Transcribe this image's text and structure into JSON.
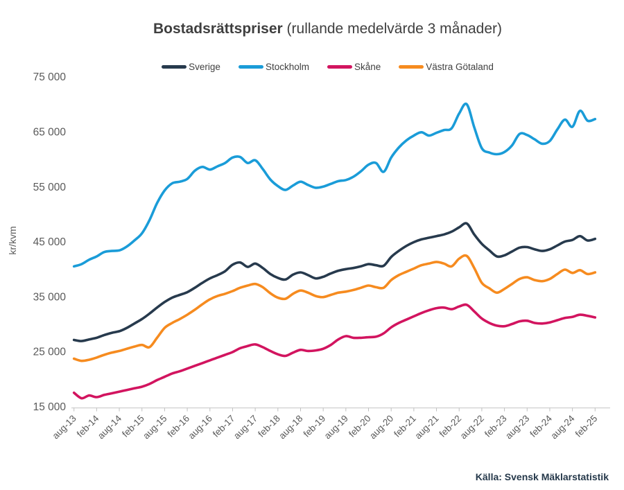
{
  "chart_data": {
    "type": "line",
    "title_bold": "Bostadsrättspriser",
    "title_rest": " (rullande medelvärde 3 månader)",
    "ylabel": "kr/kvm",
    "source": "Källa: Svensk Mäklarstatistik",
    "ylim": [
      15000,
      75000
    ],
    "grid": "none, only x axis line with ticks",
    "legend_position": "top center",
    "y_ticks": [
      "75 000",
      "65 000",
      "55 000",
      "45 000",
      "35 000",
      "25 000",
      "15 000"
    ],
    "y_tick_values": [
      75000,
      65000,
      55000,
      45000,
      35000,
      25000,
      15000
    ],
    "x_labels": [
      "aug-13",
      "feb-14",
      "aug-14",
      "feb-15",
      "aug-15",
      "feb-16",
      "aug-16",
      "feb-17",
      "aug-17",
      "feb-18",
      "aug-18",
      "feb-19",
      "aug-19",
      "feb-20",
      "aug-20",
      "feb-21",
      "aug-21",
      "feb-22",
      "aug-22",
      "feb-23",
      "aug-23",
      "feb-24",
      "aug-24",
      "feb-25"
    ],
    "x_label_every_n_points": 3,
    "point_interval": "2 months, aug-2013 to feb-2025",
    "series": [
      {
        "name": "Sverige",
        "color": "#273A4D",
        "values": [
          27100,
          26900,
          27200,
          27500,
          28000,
          28400,
          28700,
          29300,
          30100,
          30900,
          31900,
          33000,
          34000,
          34800,
          35300,
          35800,
          36600,
          37500,
          38300,
          38900,
          39600,
          40800,
          41200,
          40400,
          41000,
          40200,
          39100,
          38400,
          38100,
          39000,
          39400,
          38900,
          38300,
          38600,
          39200,
          39700,
          40000,
          40200,
          40500,
          40900,
          40700,
          40600,
          42200,
          43300,
          44200,
          44900,
          45400,
          45700,
          46000,
          46300,
          46800,
          47600,
          48300,
          46300,
          44600,
          43400,
          42300,
          42500,
          43200,
          43900,
          44000,
          43600,
          43300,
          43600,
          44300,
          45000,
          45300,
          46000,
          45200,
          45500
        ]
      },
      {
        "name": "Stockholm",
        "color": "#1A9CD8",
        "values": [
          40500,
          40900,
          41700,
          42300,
          43100,
          43300,
          43400,
          44100,
          45200,
          46500,
          48900,
          52000,
          54300,
          55600,
          55900,
          56400,
          57900,
          58600,
          58100,
          58700,
          59300,
          60300,
          60400,
          59300,
          59800,
          58200,
          56300,
          55100,
          54400,
          55200,
          55900,
          55300,
          54800,
          55000,
          55500,
          56000,
          56200,
          56800,
          57800,
          59000,
          59300,
          57700,
          60300,
          62100,
          63400,
          64300,
          64900,
          64300,
          64800,
          65300,
          65600,
          68300,
          70000,
          65800,
          62000,
          61200,
          60900,
          61300,
          62500,
          64600,
          64400,
          63600,
          62800,
          63300,
          65400,
          67200,
          65900,
          68800,
          67000,
          67300
        ]
      },
      {
        "name": "Skåne",
        "color": "#D2145F",
        "values": [
          17500,
          16500,
          17000,
          16700,
          17100,
          17400,
          17700,
          18000,
          18300,
          18600,
          19100,
          19800,
          20400,
          21000,
          21400,
          21900,
          22400,
          22900,
          23400,
          23900,
          24400,
          24900,
          25600,
          26000,
          26300,
          25800,
          25100,
          24500,
          24200,
          24800,
          25300,
          25100,
          25200,
          25500,
          26200,
          27200,
          27800,
          27500,
          27500,
          27600,
          27700,
          28300,
          29400,
          30200,
          30800,
          31400,
          32000,
          32500,
          32900,
          33000,
          32700,
          33200,
          33500,
          32300,
          31000,
          30200,
          29700,
          29600,
          30000,
          30500,
          30600,
          30200,
          30100,
          30300,
          30700,
          31100,
          31300,
          31700,
          31500,
          31200
        ]
      },
      {
        "name": "Västra Götaland",
        "color": "#F68B1F",
        "values": [
          23700,
          23300,
          23500,
          23900,
          24400,
          24800,
          25100,
          25500,
          25900,
          26200,
          25800,
          27500,
          29300,
          30200,
          30900,
          31700,
          32600,
          33600,
          34500,
          35100,
          35500,
          36000,
          36600,
          37000,
          37300,
          36700,
          35600,
          34800,
          34600,
          35500,
          36100,
          35700,
          35100,
          34900,
          35300,
          35700,
          35900,
          36200,
          36600,
          37000,
          36700,
          36600,
          38000,
          38900,
          39500,
          40100,
          40700,
          41000,
          41300,
          41000,
          40500,
          41900,
          42400,
          40200,
          37500,
          36500,
          35700,
          36400,
          37300,
          38200,
          38500,
          38000,
          37800,
          38200,
          39100,
          39900,
          39300,
          39800,
          39100,
          39400
        ]
      }
    ]
  }
}
